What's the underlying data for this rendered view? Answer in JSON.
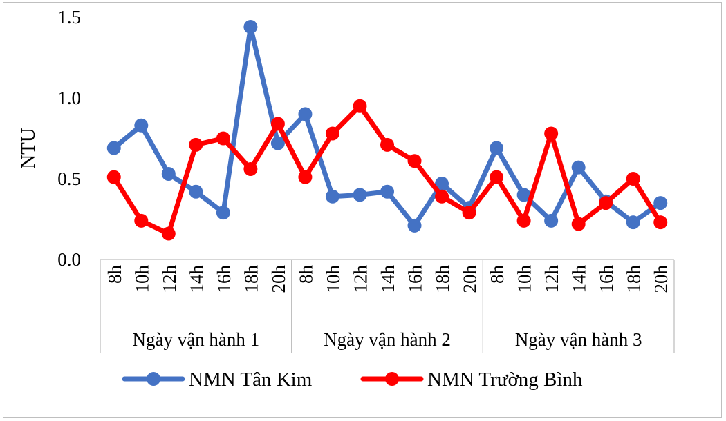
{
  "chart_data": {
    "type": "line",
    "ylabel": "NTU",
    "ylim": [
      0,
      1.5
    ],
    "yticks": [
      "0.0",
      "0.5",
      "1.0",
      "1.5"
    ],
    "grid": false,
    "legend_position": "bottom",
    "groups": [
      {
        "label": "Ngày vận hành 1",
        "categories": [
          "8h",
          "10h",
          "12h",
          "14h",
          "16h",
          "18h",
          "20h"
        ]
      },
      {
        "label": "Ngày vận hành 2",
        "categories": [
          "8h",
          "10h",
          "12h",
          "14h",
          "16h",
          "18h",
          "20h"
        ]
      },
      {
        "label": "Ngày vận hành 3",
        "categories": [
          "8h",
          "10h",
          "12h",
          "14h",
          "16h",
          "18h",
          "20h"
        ]
      }
    ],
    "series": [
      {
        "name": "NMN Tân Kim",
        "color": "#4472c4",
        "values": [
          0.69,
          0.83,
          0.53,
          0.42,
          0.29,
          1.44,
          0.72,
          0.9,
          0.39,
          0.4,
          0.42,
          0.21,
          0.47,
          0.32,
          0.69,
          0.4,
          0.24,
          0.57,
          0.36,
          0.23,
          0.35
        ]
      },
      {
        "name": "NMN Trường Bình",
        "color": "#ff0000",
        "values": [
          0.51,
          0.24,
          0.16,
          0.71,
          0.75,
          0.56,
          0.84,
          0.51,
          0.78,
          0.95,
          0.71,
          0.61,
          0.39,
          0.29,
          0.51,
          0.24,
          0.78,
          0.22,
          0.35,
          0.5,
          0.23
        ]
      }
    ]
  }
}
